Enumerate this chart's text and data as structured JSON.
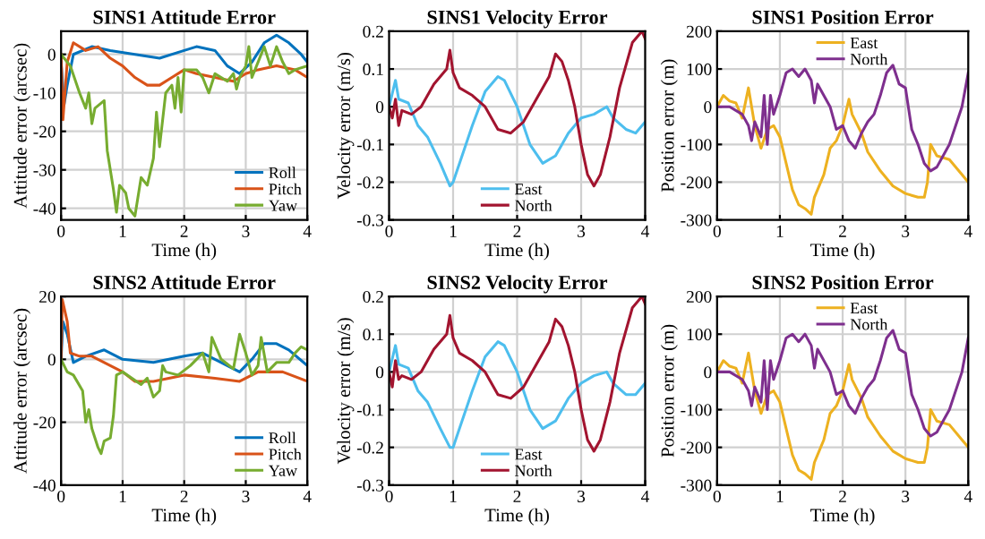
{
  "chart_data": [
    {
      "type": "line",
      "title": "SINS1 Attitude Error",
      "xlabel": "Time (h)",
      "ylabel": "Attitude error (arcsec)",
      "xlim": [
        0,
        4
      ],
      "xticks": [
        0,
        1,
        2,
        3,
        4
      ],
      "ylim": [
        -43,
        6
      ],
      "yticks": [
        -40,
        -30,
        -20,
        -10,
        0
      ],
      "grid": true,
      "legend": "bottom right",
      "series": [
        {
          "name": "Roll",
          "color": "#0072bd",
          "x": [
            0,
            0.05,
            0.1,
            0.2,
            0.5,
            0.8,
            1.2,
            1.6,
            2.0,
            2.2,
            2.5,
            2.7,
            2.9,
            3.1,
            3.3,
            3.5,
            3.7,
            3.9,
            4.0
          ],
          "values": [
            -2,
            -13,
            -8,
            0,
            2,
            1,
            0,
            -1,
            1,
            2,
            1,
            -3,
            -5,
            -2,
            3,
            5,
            3,
            0,
            -2
          ]
        },
        {
          "name": "Pitch",
          "color": "#d95319",
          "x": [
            0,
            0.03,
            0.1,
            0.2,
            0.4,
            0.6,
            0.8,
            1.0,
            1.2,
            1.4,
            1.6,
            1.8,
            2.0,
            2.2,
            2.5,
            2.8,
            3.0,
            3.2,
            3.5,
            3.8,
            4.0
          ],
          "values": [
            0,
            -17,
            -2,
            3,
            1,
            2,
            -1,
            -3,
            -6,
            -8,
            -8,
            -6,
            -4,
            -5,
            -6,
            -7,
            -5,
            -4,
            -3,
            -4,
            -6
          ]
        },
        {
          "name": "Yaw",
          "color": "#77ac30",
          "x": [
            0,
            0.15,
            0.3,
            0.4,
            0.45,
            0.5,
            0.55,
            0.7,
            0.75,
            0.85,
            0.9,
            0.95,
            1.05,
            1.1,
            1.2,
            1.3,
            1.4,
            1.5,
            1.55,
            1.6,
            1.7,
            1.8,
            1.85,
            1.9,
            1.95,
            2.0,
            2.2,
            2.3,
            2.4,
            2.5,
            2.7,
            2.8,
            2.85,
            2.9,
            3.0,
            3.05,
            3.1,
            3.2,
            3.3,
            3.4,
            3.5,
            3.6,
            3.7,
            3.8,
            4.0
          ],
          "values": [
            0,
            -3,
            -10,
            -14,
            -10,
            -18,
            -14,
            -12,
            -25,
            -35,
            -41,
            -34,
            -36,
            -40,
            -42,
            -32,
            -34,
            -27,
            -15,
            -24,
            -10,
            -8,
            -14,
            -6,
            -15,
            -4,
            -4,
            -6,
            -10,
            -5,
            -7,
            -5,
            -9,
            -6,
            -3,
            2,
            -6,
            -2,
            2,
            -3,
            2,
            -2,
            -5,
            -4,
            -3
          ]
        }
      ]
    },
    {
      "type": "line",
      "title": "SINS1 Velocity Error",
      "xlabel": "Time (h)",
      "ylabel": "Velocity error (m/s)",
      "xlim": [
        0,
        4
      ],
      "xticks": [
        0,
        1,
        2,
        3,
        4
      ],
      "ylim": [
        -0.3,
        0.2
      ],
      "yticks": [
        -0.3,
        -0.2,
        -0.1,
        0,
        0.1,
        0.2
      ],
      "grid": true,
      "legend": "bottom",
      "series": [
        {
          "name": "East",
          "color": "#4dbeee",
          "x": [
            0,
            0.1,
            0.15,
            0.3,
            0.45,
            0.6,
            0.8,
            0.95,
            1.0,
            1.1,
            1.3,
            1.5,
            1.7,
            1.8,
            2.0,
            2.2,
            2.4,
            2.6,
            2.8,
            3.0,
            3.2,
            3.4,
            3.5,
            3.7,
            3.85,
            4.0
          ],
          "values": [
            0,
            0.07,
            0.02,
            0.01,
            -0.05,
            -0.08,
            -0.15,
            -0.21,
            -0.2,
            -0.15,
            -0.05,
            0.04,
            0.08,
            0.07,
            0,
            -0.1,
            -0.15,
            -0.13,
            -0.07,
            -0.03,
            -0.02,
            0,
            -0.03,
            -0.06,
            -0.07,
            -0.04
          ]
        },
        {
          "name": "North",
          "color": "#a2142f",
          "x": [
            0,
            0.05,
            0.1,
            0.15,
            0.2,
            0.35,
            0.5,
            0.7,
            0.9,
            0.95,
            1.0,
            1.1,
            1.3,
            1.5,
            1.7,
            1.9,
            2.1,
            2.3,
            2.5,
            2.6,
            2.7,
            2.8,
            2.9,
            3.0,
            3.1,
            3.2,
            3.3,
            3.45,
            3.6,
            3.8,
            3.95,
            4.0
          ],
          "values": [
            0,
            -0.03,
            0.02,
            -0.05,
            -0.01,
            -0.02,
            0,
            0.06,
            0.1,
            0.15,
            0.09,
            0.05,
            0.03,
            0,
            -0.06,
            -0.07,
            -0.04,
            0.02,
            0.08,
            0.14,
            0.12,
            0.07,
            0,
            -0.1,
            -0.18,
            -0.21,
            -0.18,
            -0.08,
            0.05,
            0.17,
            0.2,
            0.18
          ]
        }
      ]
    },
    {
      "type": "line",
      "title": "SINS1 Position Error",
      "xlabel": "Time (h)",
      "ylabel": "Position error (m)",
      "xlim": [
        0,
        4
      ],
      "xticks": [
        0,
        1,
        2,
        3,
        4
      ],
      "ylim": [
        -300,
        200
      ],
      "yticks": [
        -300,
        -200,
        -100,
        0,
        100,
        200
      ],
      "grid": true,
      "legend": "top",
      "series": [
        {
          "name": "East",
          "color": "#edb120",
          "x": [
            0,
            0.1,
            0.2,
            0.3,
            0.4,
            0.5,
            0.55,
            0.6,
            0.7,
            0.8,
            0.9,
            1.0,
            1.1,
            1.2,
            1.3,
            1.4,
            1.5,
            1.55,
            1.7,
            1.8,
            1.9,
            2.0,
            2.1,
            2.15,
            2.3,
            2.4,
            2.6,
            2.8,
            3.0,
            3.2,
            3.3,
            3.35,
            3.4,
            3.5,
            3.7,
            3.9,
            4.0
          ],
          "values": [
            0,
            30,
            15,
            10,
            -30,
            50,
            0,
            -50,
            -110,
            -60,
            -50,
            -80,
            -150,
            -220,
            -260,
            -270,
            -285,
            -240,
            -180,
            -110,
            -90,
            -50,
            20,
            -20,
            -70,
            -120,
            -170,
            -210,
            -230,
            -240,
            -240,
            -200,
            -100,
            -130,
            -140,
            -180,
            -200
          ]
        },
        {
          "name": "North",
          "color": "#7e2f8e",
          "x": [
            0,
            0.2,
            0.4,
            0.5,
            0.55,
            0.6,
            0.7,
            0.75,
            0.8,
            0.85,
            0.9,
            1.0,
            1.1,
            1.2,
            1.3,
            1.4,
            1.5,
            1.55,
            1.6,
            1.8,
            1.9,
            2.0,
            2.1,
            2.2,
            2.3,
            2.4,
            2.5,
            2.6,
            2.7,
            2.8,
            2.9,
            3.0,
            3.1,
            3.2,
            3.3,
            3.4,
            3.5,
            3.7,
            3.9,
            4.0
          ],
          "values": [
            0,
            0,
            -20,
            -50,
            -90,
            -40,
            -80,
            30,
            -100,
            30,
            -20,
            30,
            90,
            100,
            80,
            100,
            70,
            10,
            60,
            0,
            -60,
            -50,
            -90,
            -110,
            -70,
            -40,
            -20,
            30,
            90,
            110,
            60,
            50,
            -60,
            -100,
            -150,
            -170,
            -160,
            -100,
            0,
            90
          ]
        }
      ]
    },
    {
      "type": "line",
      "title": "SINS2 Attitude Error",
      "xlabel": "Time (h)",
      "ylabel": "Attitude error (arcsec)",
      "xlim": [
        0,
        4
      ],
      "xticks": [
        0,
        1,
        2,
        3,
        4
      ],
      "ylim": [
        -40,
        20
      ],
      "yticks": [
        -40,
        -20,
        0,
        20
      ],
      "grid": true,
      "legend": "bottom right",
      "series": [
        {
          "name": "Roll",
          "color": "#0072bd",
          "x": [
            0,
            0.03,
            0.1,
            0.2,
            0.4,
            0.7,
            1.0,
            1.5,
            2.0,
            2.3,
            2.6,
            2.9,
            3.1,
            3.3,
            3.5,
            3.7,
            4.0
          ],
          "values": [
            0,
            12,
            8,
            -1,
            1,
            3,
            0,
            -1,
            1,
            2,
            -1,
            -4,
            0,
            5,
            5,
            3,
            -2
          ]
        },
        {
          "name": "Pitch",
          "color": "#d95319",
          "x": [
            0,
            0.02,
            0.1,
            0.15,
            0.3,
            0.5,
            0.7,
            1.0,
            1.2,
            1.5,
            2.0,
            2.5,
            2.9,
            3.2,
            3.6,
            4.0
          ],
          "values": [
            0,
            19,
            12,
            2,
            1,
            1,
            -1,
            -4,
            -7,
            -7,
            -5,
            -6,
            -7,
            -4,
            -4,
            -7
          ]
        },
        {
          "name": "Yaw",
          "color": "#77ac30",
          "x": [
            0,
            0.1,
            0.2,
            0.35,
            0.4,
            0.45,
            0.5,
            0.6,
            0.65,
            0.7,
            0.8,
            0.85,
            0.9,
            1.0,
            1.3,
            1.4,
            1.5,
            1.6,
            1.65,
            1.7,
            1.9,
            2.1,
            2.3,
            2.4,
            2.45,
            2.6,
            2.8,
            2.9,
            3.0,
            3.1,
            3.2,
            3.25,
            3.35,
            3.5,
            3.7,
            3.8,
            3.9,
            4.0
          ],
          "values": [
            0,
            -4,
            -5,
            -10,
            -20,
            -16,
            -22,
            -28,
            -30,
            -26,
            -25,
            -18,
            -5,
            -4,
            -8,
            -6,
            -12,
            -10,
            -2,
            -4,
            -5,
            -2,
            2,
            -4,
            7,
            0,
            -3,
            8,
            2,
            -5,
            -2,
            7,
            -4,
            -1,
            -1,
            2,
            4,
            3
          ]
        }
      ]
    },
    {
      "type": "line",
      "title": "SINS2 Velocity Error",
      "xlabel": "Time (h)",
      "ylabel": "Velocity error (m/s)",
      "xlim": [
        0,
        4
      ],
      "xticks": [
        0,
        1,
        2,
        3,
        4
      ],
      "ylim": [
        -0.3,
        0.2
      ],
      "yticks": [
        -0.3,
        -0.2,
        -0.1,
        0,
        0.1,
        0.2
      ],
      "grid": true,
      "legend": "bottom",
      "series": [
        {
          "name": "East",
          "color": "#4dbeee",
          "x": [
            0,
            0.1,
            0.15,
            0.3,
            0.45,
            0.6,
            0.8,
            0.95,
            1.0,
            1.1,
            1.3,
            1.5,
            1.7,
            1.8,
            2.0,
            2.2,
            2.4,
            2.6,
            2.8,
            3.0,
            3.2,
            3.4,
            3.5,
            3.7,
            3.85,
            4.0
          ],
          "values": [
            0,
            0.07,
            0.02,
            0.01,
            -0.05,
            -0.08,
            -0.15,
            -0.2,
            -0.2,
            -0.15,
            -0.05,
            0.04,
            0.08,
            0.07,
            0,
            -0.1,
            -0.15,
            -0.13,
            -0.07,
            -0.03,
            -0.01,
            0,
            -0.03,
            -0.06,
            -0.06,
            -0.03
          ]
        },
        {
          "name": "North",
          "color": "#a2142f",
          "x": [
            0,
            0.05,
            0.1,
            0.15,
            0.2,
            0.35,
            0.5,
            0.7,
            0.9,
            0.95,
            1.0,
            1.1,
            1.3,
            1.5,
            1.7,
            1.9,
            2.1,
            2.3,
            2.5,
            2.6,
            2.7,
            2.8,
            2.9,
            3.0,
            3.1,
            3.2,
            3.3,
            3.45,
            3.6,
            3.8,
            3.95,
            4.0
          ],
          "values": [
            0,
            -0.04,
            0.03,
            -0.02,
            -0.01,
            -0.02,
            0,
            0.06,
            0.1,
            0.15,
            0.09,
            0.05,
            0.03,
            0,
            -0.06,
            -0.07,
            -0.04,
            0.02,
            0.08,
            0.14,
            0.12,
            0.07,
            0,
            -0.1,
            -0.18,
            -0.21,
            -0.18,
            -0.08,
            0.05,
            0.17,
            0.2,
            0.18
          ]
        }
      ]
    },
    {
      "type": "line",
      "title": "SINS2 Position Error",
      "xlabel": "Time (h)",
      "ylabel": "Position error (m)",
      "xlim": [
        0,
        4
      ],
      "xticks": [
        0,
        1,
        2,
        3,
        4
      ],
      "ylim": [
        -300,
        200
      ],
      "yticks": [
        -300,
        -200,
        -100,
        0,
        100,
        200
      ],
      "grid": true,
      "legend": "top",
      "series": [
        {
          "name": "East",
          "color": "#edb120",
          "x": [
            0,
            0.1,
            0.2,
            0.3,
            0.4,
            0.5,
            0.55,
            0.6,
            0.7,
            0.8,
            0.9,
            1.0,
            1.1,
            1.2,
            1.3,
            1.4,
            1.5,
            1.55,
            1.7,
            1.8,
            1.9,
            2.0,
            2.1,
            2.15,
            2.3,
            2.4,
            2.6,
            2.8,
            3.0,
            3.2,
            3.3,
            3.35,
            3.4,
            3.5,
            3.7,
            3.9,
            4.0
          ],
          "values": [
            0,
            30,
            15,
            10,
            -30,
            50,
            0,
            -50,
            -110,
            -60,
            -50,
            -80,
            -150,
            -220,
            -260,
            -270,
            -285,
            -240,
            -180,
            -110,
            -90,
            -50,
            20,
            -20,
            -70,
            -120,
            -170,
            -210,
            -230,
            -240,
            -240,
            -200,
            -100,
            -130,
            -140,
            -180,
            -200
          ]
        },
        {
          "name": "North",
          "color": "#7e2f8e",
          "x": [
            0,
            0.2,
            0.4,
            0.5,
            0.55,
            0.6,
            0.7,
            0.75,
            0.8,
            0.85,
            0.9,
            1.0,
            1.1,
            1.2,
            1.3,
            1.4,
            1.5,
            1.55,
            1.6,
            1.8,
            1.9,
            2.0,
            2.1,
            2.2,
            2.3,
            2.4,
            2.5,
            2.6,
            2.7,
            2.8,
            2.9,
            3.0,
            3.1,
            3.2,
            3.3,
            3.4,
            3.5,
            3.7,
            3.9,
            4.0
          ],
          "values": [
            0,
            0,
            -20,
            -50,
            -90,
            -40,
            -80,
            30,
            -100,
            30,
            -20,
            30,
            90,
            100,
            80,
            100,
            70,
            10,
            60,
            0,
            -60,
            -50,
            -90,
            -110,
            -70,
            -40,
            -20,
            30,
            90,
            110,
            60,
            50,
            -60,
            -100,
            -150,
            -170,
            -160,
            -100,
            0,
            90
          ]
        }
      ]
    }
  ]
}
